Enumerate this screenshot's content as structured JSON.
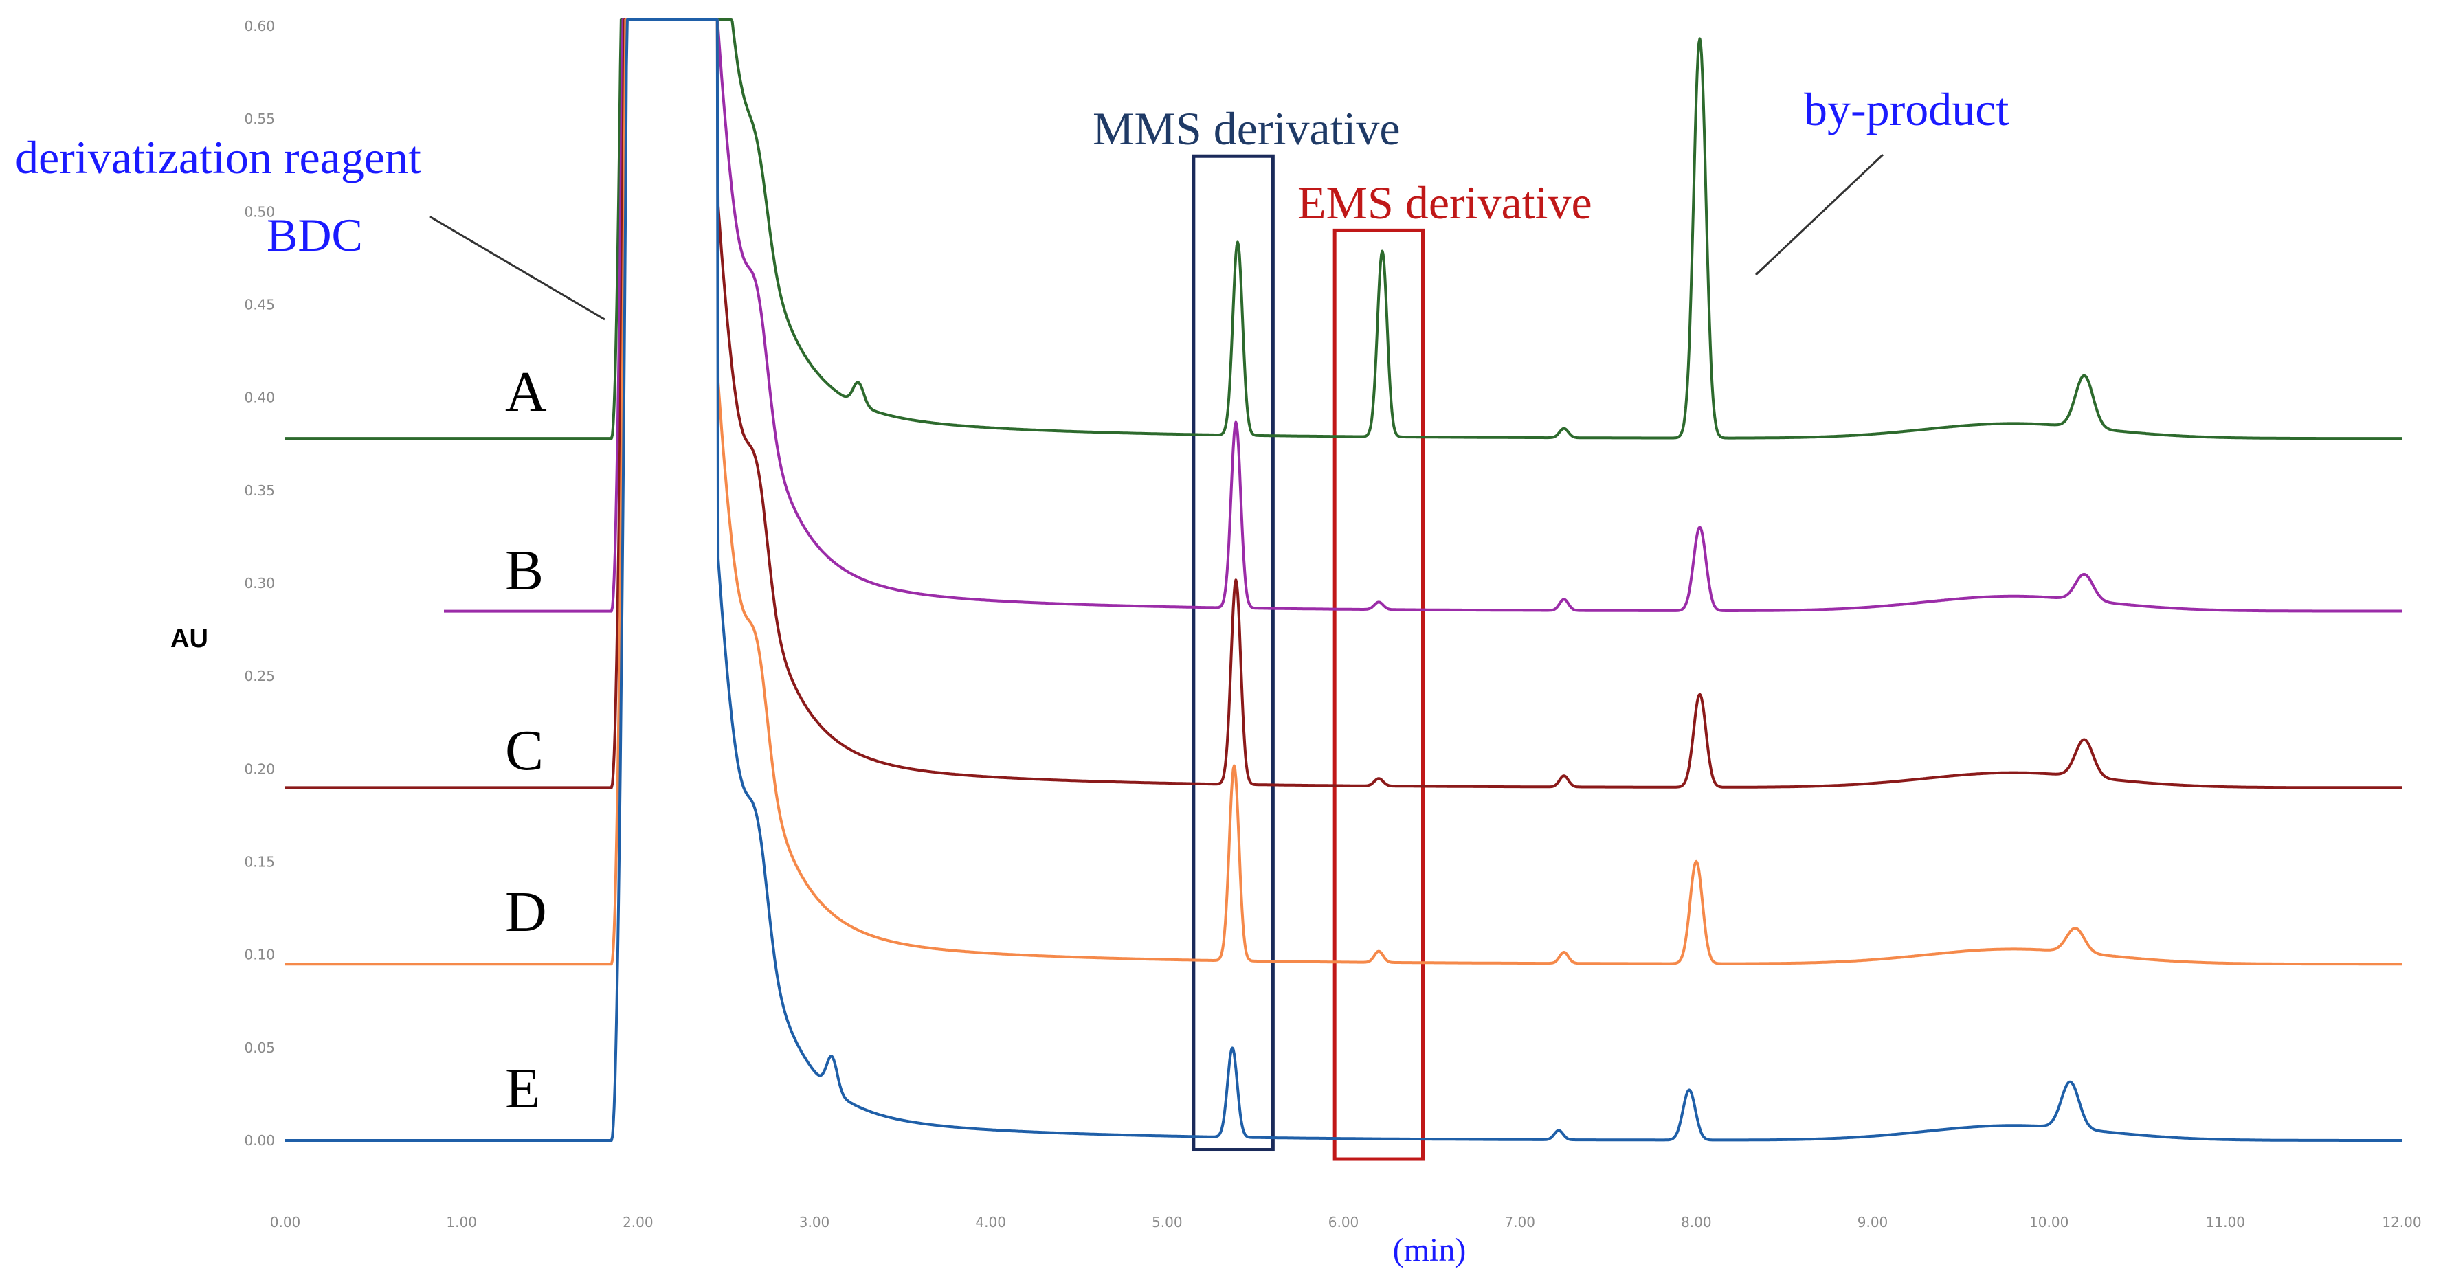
{
  "chart_data": {
    "type": "line",
    "title": "",
    "xlabel": "(min)",
    "ylabel": "AU",
    "xlim": [
      0,
      12
    ],
    "ylim": [
      0,
      0.6
    ],
    "x_ticks": [
      "0.00",
      "1.00",
      "2.00",
      "3.00",
      "4.00",
      "5.00",
      "6.00",
      "7.00",
      "8.00",
      "9.00",
      "10.00",
      "11.00",
      "12.00"
    ],
    "y_ticks": [
      "0.00",
      "0.05",
      "0.10",
      "0.15",
      "0.20",
      "0.25",
      "0.30",
      "0.35",
      "0.40",
      "0.45",
      "0.50",
      "0.55",
      "0.60"
    ],
    "series": [
      {
        "name": "A",
        "color": "#2d6a2d",
        "x_start": 0.0,
        "baseline": 0.378,
        "peaks": [
          {
            "x": 2.68,
            "height": 0.036,
            "width": 0.12
          },
          {
            "x": 3.25,
            "height": 0.012,
            "width": 0.06
          },
          {
            "x": 5.4,
            "height": 0.104,
            "width": 0.055
          },
          {
            "x": 6.22,
            "height": 0.1,
            "width": 0.055
          },
          {
            "x": 7.25,
            "height": 0.005,
            "width": 0.05
          },
          {
            "x": 8.02,
            "height": 0.215,
            "width": 0.07
          },
          {
            "x": 10.2,
            "height": 0.028,
            "width": 0.1
          }
        ]
      },
      {
        "name": "B",
        "color": "#9b2ca8",
        "x_start": 0.9,
        "baseline": 0.285,
        "peaks": [
          {
            "x": 2.68,
            "height": 0.05,
            "width": 0.12
          },
          {
            "x": 5.39,
            "height": 0.1,
            "width": 0.055
          },
          {
            "x": 6.2,
            "height": 0.004,
            "width": 0.05
          },
          {
            "x": 7.25,
            "height": 0.006,
            "width": 0.05
          },
          {
            "x": 8.02,
            "height": 0.045,
            "width": 0.07
          },
          {
            "x": 10.2,
            "height": 0.014,
            "width": 0.1
          }
        ]
      },
      {
        "name": "C",
        "color": "#8b1a1a",
        "x_start": 0.0,
        "baseline": 0.19,
        "peaks": [
          {
            "x": 2.68,
            "height": 0.05,
            "width": 0.12
          },
          {
            "x": 5.39,
            "height": 0.11,
            "width": 0.055
          },
          {
            "x": 6.2,
            "height": 0.004,
            "width": 0.05
          },
          {
            "x": 7.25,
            "height": 0.006,
            "width": 0.05
          },
          {
            "x": 8.02,
            "height": 0.05,
            "width": 0.07
          },
          {
            "x": 10.2,
            "height": 0.02,
            "width": 0.1
          }
        ]
      },
      {
        "name": "D",
        "color": "#f5894a",
        "x_start": 0.0,
        "baseline": 0.095,
        "peaks": [
          {
            "x": 2.68,
            "height": 0.05,
            "width": 0.12
          },
          {
            "x": 5.38,
            "height": 0.105,
            "width": 0.055
          },
          {
            "x": 6.2,
            "height": 0.006,
            "width": 0.05
          },
          {
            "x": 7.25,
            "height": 0.006,
            "width": 0.05
          },
          {
            "x": 8.0,
            "height": 0.055,
            "width": 0.07
          },
          {
            "x": 10.15,
            "height": 0.013,
            "width": 0.1
          }
        ]
      },
      {
        "name": "E",
        "color": "#1f5fa8",
        "x_start": 0.0,
        "baseline": 0.0,
        "peaks": [
          {
            "x": 2.68,
            "height": 0.05,
            "width": 0.12
          },
          {
            "x": 3.1,
            "height": 0.018,
            "width": 0.06
          },
          {
            "x": 5.37,
            "height": 0.048,
            "width": 0.055
          },
          {
            "x": 7.22,
            "height": 0.005,
            "width": 0.05
          },
          {
            "x": 7.96,
            "height": 0.027,
            "width": 0.07
          },
          {
            "x": 10.12,
            "height": 0.025,
            "width": 0.1
          }
        ]
      }
    ],
    "annotations": {
      "reagent_line1": "derivatization reagent",
      "reagent_line2": "BDC",
      "mms": "MMS derivative",
      "ems": "EMS derivative",
      "byproduct": "by-product"
    },
    "boxes": [
      {
        "name": "MMS derivative",
        "color": "#1a2a5a",
        "x_range": [
          5.15,
          5.6
        ],
        "y_range": [
          -0.005,
          0.53
        ]
      },
      {
        "name": "EMS derivative",
        "color": "#c01818",
        "x_range": [
          5.95,
          6.45
        ],
        "y_range": [
          -0.01,
          0.49
        ]
      }
    ]
  }
}
